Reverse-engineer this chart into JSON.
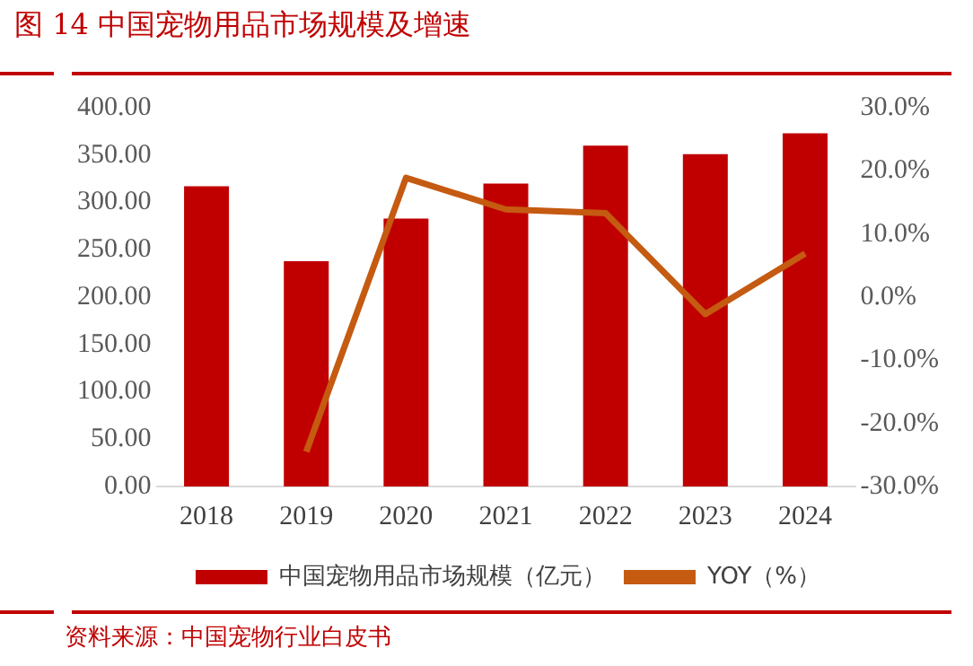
{
  "chart_data": {
    "type": "bar",
    "title": "图 14  中国宠物用品市场规模及增速",
    "categories": [
      "2018",
      "2019",
      "2020",
      "2021",
      "2022",
      "2023",
      "2024"
    ],
    "series": [
      {
        "name": "中国宠物用品市场规模（亿元）",
        "color": "#c00000",
        "values": [
          317,
          238,
          283,
          320,
          360,
          351,
          373
        ]
      },
      {
        "name": "YOY（%）",
        "type": "line",
        "axis": "y2",
        "color": "#c55a11",
        "values": [
          null,
          -24.5,
          18.9,
          13.9,
          13.3,
          -2.7,
          6.9
        ]
      }
    ],
    "ylim": [
      0,
      400
    ],
    "yticks": [
      {
        "value": 0,
        "label": "0.00"
      },
      {
        "value": 50,
        "label": "50.00"
      },
      {
        "value": 100,
        "label": "100.00"
      },
      {
        "value": 150,
        "label": "150.00"
      },
      {
        "value": 200,
        "label": "200.00"
      },
      {
        "value": 250,
        "label": "250.00"
      },
      {
        "value": 300,
        "label": "300.00"
      },
      {
        "value": 350,
        "label": "350.00"
      },
      {
        "value": 400,
        "label": "400.00"
      }
    ],
    "y2lim": [
      -30,
      30
    ],
    "y2ticks": [
      {
        "value": -30,
        "label": "-30.0%"
      },
      {
        "value": -20,
        "label": "-20.0%"
      },
      {
        "value": -10,
        "label": "-10.0%"
      },
      {
        "value": 0,
        "label": "0.0%"
      },
      {
        "value": 10,
        "label": "10.0%"
      },
      {
        "value": 20,
        "label": "20.0%"
      },
      {
        "value": 30,
        "label": "30.0%"
      }
    ],
    "legend": "bottom",
    "grid": false,
    "marker": "none",
    "annotations": [
      "资料来源：中国宠物行业白皮书"
    ]
  }
}
